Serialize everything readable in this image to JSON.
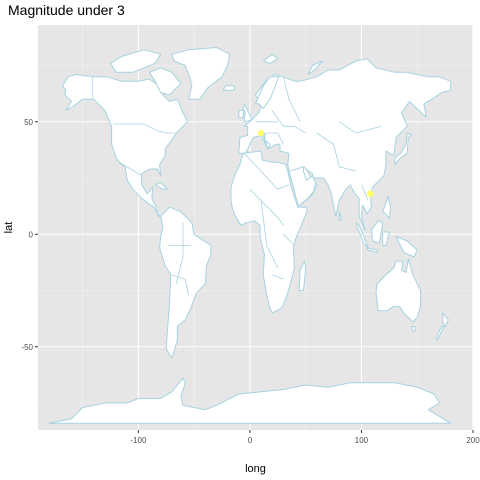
{
  "title": "Magnitude under 3",
  "x_label": "long",
  "y_label": "lat",
  "colors": {
    "panel_background": "#e6e6e6",
    "grid_major": "#ffffff",
    "grid_minor": "#f2f2f2",
    "land_fill": "#ffffff",
    "border": "#a6d3e0",
    "point": "#ffff66"
  },
  "x_axis": {
    "range": [
      -190,
      200
    ],
    "ticks": [
      -100,
      0,
      100,
      200
    ]
  },
  "y_axis": {
    "range": [
      -87,
      93
    ],
    "ticks": [
      -50,
      0,
      50
    ]
  },
  "points": [
    {
      "long": 10,
      "lat": 45
    },
    {
      "long": 108,
      "lat": 18
    }
  ]
}
